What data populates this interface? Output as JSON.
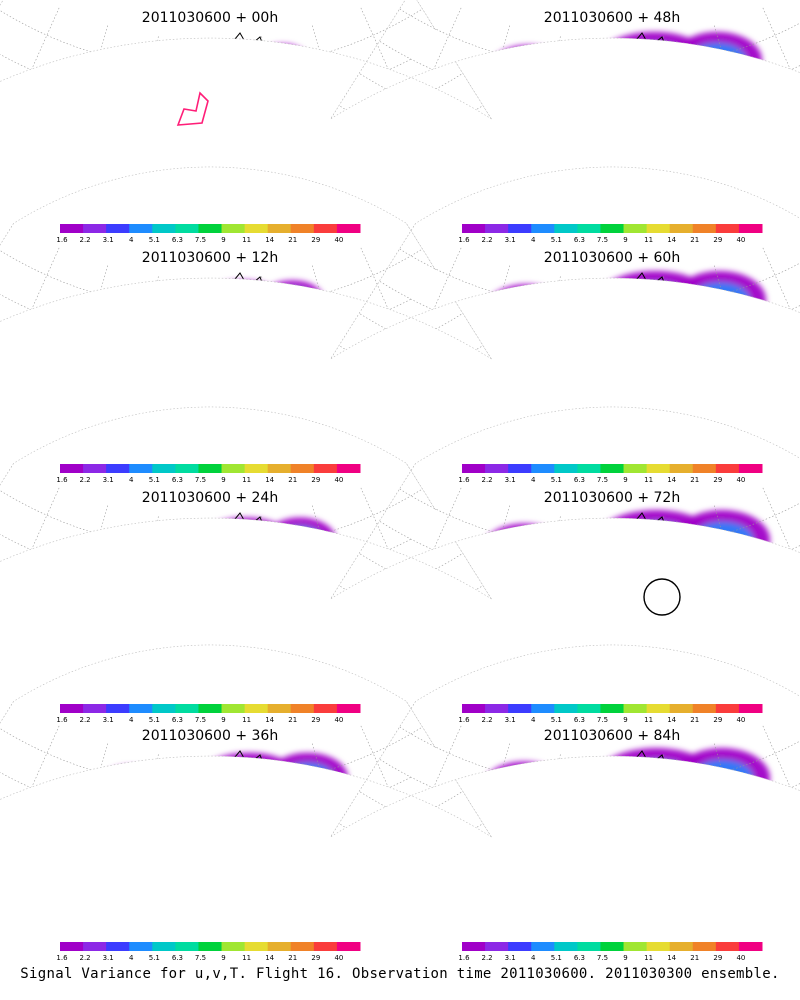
{
  "panels": [
    {
      "title": "2011030600 + 00h",
      "lead": "00h",
      "spread": 0.25,
      "peak": 0.45,
      "domain_box": true
    },
    {
      "title": "2011030600 + 48h",
      "lead": "48h",
      "spread": 0.9,
      "peak": 0.65
    },
    {
      "title": "2011030600 + 12h",
      "lead": "12h",
      "spread": 0.45,
      "peak": 0.5
    },
    {
      "title": "2011030600 + 60h",
      "lead": "60h",
      "spread": 0.95,
      "peak": 0.6
    },
    {
      "title": "2011030600 + 24h",
      "lead": "24h",
      "spread": 0.6,
      "peak": 0.6
    },
    {
      "title": "2011030600 + 72h",
      "lead": "72h",
      "spread": 1.0,
      "peak": 0.7,
      "circle": true
    },
    {
      "title": "2011030600 + 36h",
      "lead": "36h",
      "spread": 0.75,
      "peak": 0.65
    },
    {
      "title": "2011030600 + 84h",
      "lead": "84h",
      "spread": 1.0,
      "peak": 0.7
    }
  ],
  "colorbar": {
    "ticks": [
      "1.6",
      "2.2",
      "3.1",
      "4",
      "5.1",
      "6.3",
      "7.5",
      "9",
      "11",
      "14",
      "21",
      "29",
      "40"
    ],
    "colors": [
      "#a000c8",
      "#8c28e6",
      "#3c3cff",
      "#1e8cff",
      "#00c8c8",
      "#00dca0",
      "#00d23c",
      "#a0e632",
      "#e6dc32",
      "#e6af2d",
      "#f08228",
      "#fa3c3c",
      "#f00082"
    ]
  },
  "caption": "Signal Variance for u,v,T. Flight 16. Observation time 2011030600. 2011030300 ensemble."
}
